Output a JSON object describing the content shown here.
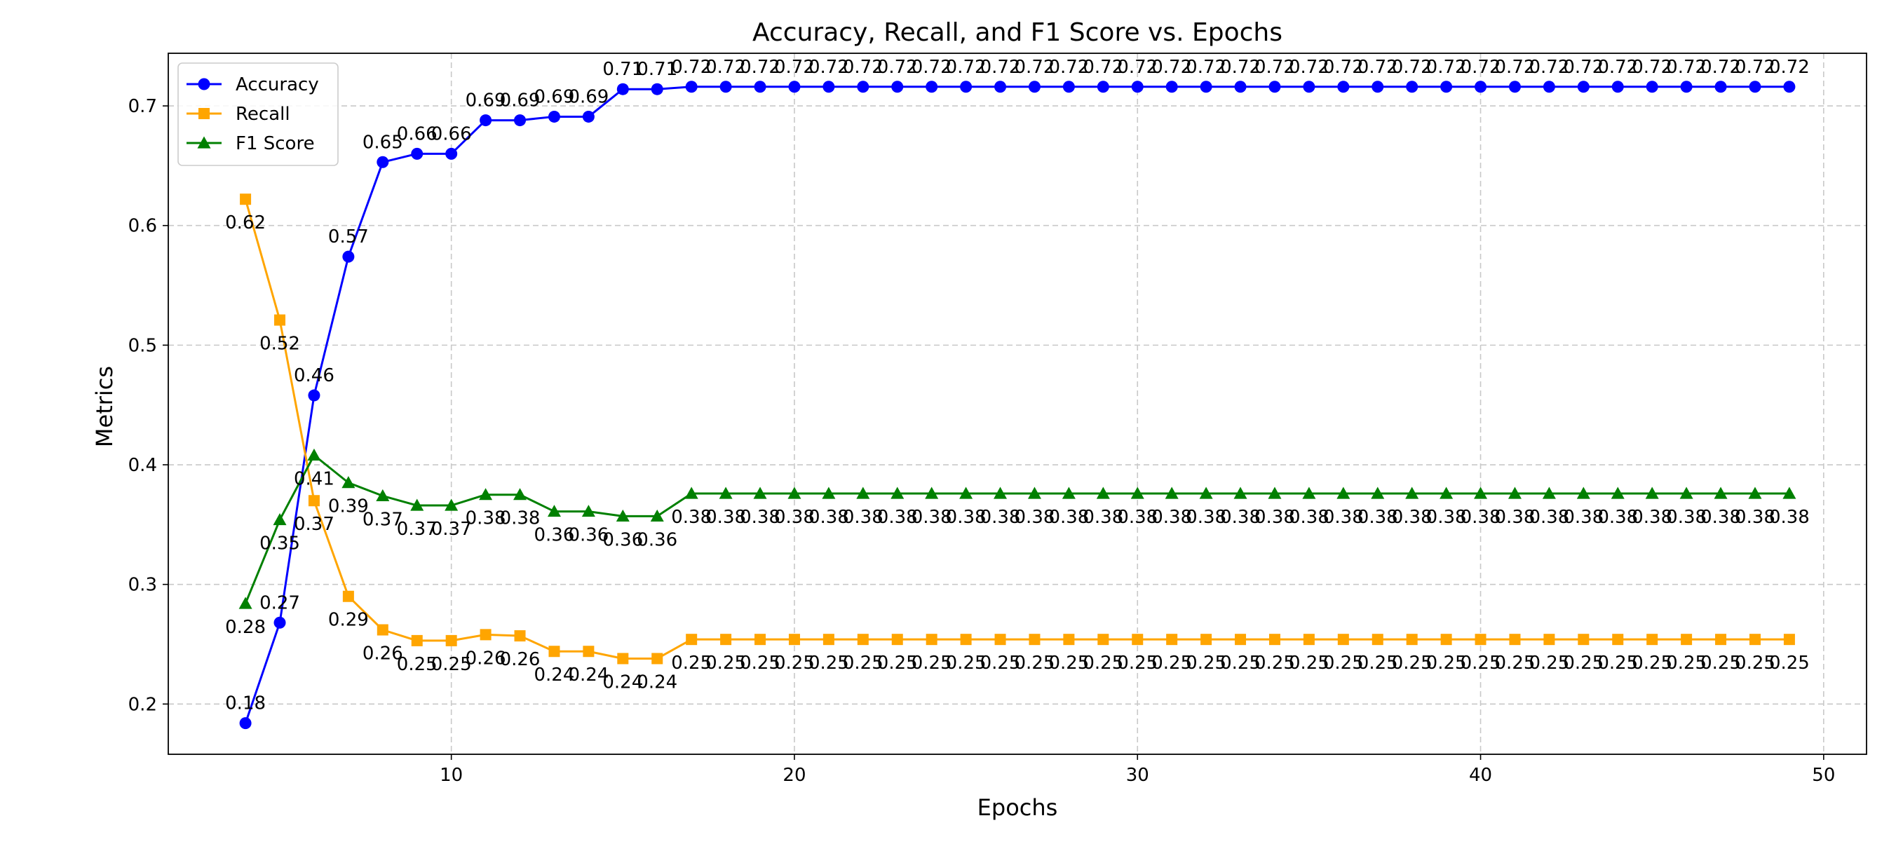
{
  "chart_data": {
    "type": "line",
    "title": "Accuracy, Recall, and F1 Score vs. Epochs",
    "xlabel": "Epochs",
    "ylabel": "Metrics",
    "xlim": [
      1.75,
      51.25
    ],
    "ylim": [
      0.158,
      0.744
    ],
    "xticks": [
      10,
      20,
      30,
      40,
      50
    ],
    "yticks": [
      0.2,
      0.3,
      0.4,
      0.5,
      0.6,
      0.7
    ],
    "grid": true,
    "legend_position": "top-left",
    "x": [
      4,
      5,
      6,
      7,
      8,
      9,
      10,
      11,
      12,
      13,
      14,
      15,
      16,
      17,
      18,
      19,
      20,
      21,
      22,
      23,
      24,
      25,
      26,
      27,
      28,
      29,
      30,
      31,
      32,
      33,
      34,
      35,
      36,
      37,
      38,
      39,
      40,
      41,
      42,
      43,
      44,
      45,
      46,
      47,
      48,
      49
    ],
    "series": [
      {
        "name": "Accuracy",
        "color": "#0000ff",
        "marker": "circle",
        "label_position": "above",
        "values": [
          0.184,
          0.268,
          0.458,
          0.574,
          0.653,
          0.66,
          0.66,
          0.688,
          0.688,
          0.691,
          0.691,
          0.714,
          0.714,
          0.716,
          0.716,
          0.716,
          0.716,
          0.716,
          0.716,
          0.716,
          0.716,
          0.716,
          0.716,
          0.716,
          0.716,
          0.716,
          0.716,
          0.716,
          0.716,
          0.716,
          0.716,
          0.716,
          0.716,
          0.716,
          0.716,
          0.716,
          0.716,
          0.716,
          0.716,
          0.716,
          0.716,
          0.716,
          0.716,
          0.716,
          0.716,
          0.716
        ],
        "labels": [
          "0.18",
          "0.27",
          "0.46",
          "0.57",
          "0.65",
          "0.66",
          "0.66",
          "0.69",
          "0.69",
          "0.69",
          "0.69",
          "0.71",
          "0.71",
          "0.72",
          "0.72",
          "0.72",
          "0.72",
          "0.72",
          "0.72",
          "0.72",
          "0.72",
          "0.72",
          "0.72",
          "0.72",
          "0.72",
          "0.72",
          "0.72",
          "0.72",
          "0.72",
          "0.72",
          "0.72",
          "0.72",
          "0.72",
          "0.72",
          "0.72",
          "0.72",
          "0.72",
          "0.72",
          "0.72",
          "0.72",
          "0.72",
          "0.72",
          "0.72",
          "0.72",
          "0.72",
          "0.72"
        ]
      },
      {
        "name": "Recall",
        "color": "#ffa500",
        "marker": "square",
        "label_position": "below",
        "values": [
          0.622,
          0.521,
          0.37,
          0.29,
          0.262,
          0.253,
          0.253,
          0.258,
          0.257,
          0.244,
          0.244,
          0.238,
          0.238,
          0.254,
          0.254,
          0.254,
          0.254,
          0.254,
          0.254,
          0.254,
          0.254,
          0.254,
          0.254,
          0.254,
          0.254,
          0.254,
          0.254,
          0.254,
          0.254,
          0.254,
          0.254,
          0.254,
          0.254,
          0.254,
          0.254,
          0.254,
          0.254,
          0.254,
          0.254,
          0.254,
          0.254,
          0.254,
          0.254,
          0.254,
          0.254,
          0.254
        ],
        "labels": [
          "0.62",
          "0.52",
          "0.37",
          "0.29",
          "0.26",
          "0.25",
          "0.25",
          "0.26",
          "0.26",
          "0.24",
          "0.24",
          "0.24",
          "0.24",
          "0.25",
          "0.25",
          "0.25",
          "0.25",
          "0.25",
          "0.25",
          "0.25",
          "0.25",
          "0.25",
          "0.25",
          "0.25",
          "0.25",
          "0.25",
          "0.25",
          "0.25",
          "0.25",
          "0.25",
          "0.25",
          "0.25",
          "0.25",
          "0.25",
          "0.25",
          "0.25",
          "0.25",
          "0.25",
          "0.25",
          "0.25",
          "0.25",
          "0.25",
          "0.25",
          "0.25",
          "0.25",
          "0.25"
        ]
      },
      {
        "name": "F1 Score",
        "color": "#008000",
        "marker": "triangle",
        "label_position": "below",
        "values": [
          0.284,
          0.354,
          0.408,
          0.385,
          0.374,
          0.366,
          0.366,
          0.375,
          0.375,
          0.361,
          0.361,
          0.357,
          0.357,
          0.376,
          0.376,
          0.376,
          0.376,
          0.376,
          0.376,
          0.376,
          0.376,
          0.376,
          0.376,
          0.376,
          0.376,
          0.376,
          0.376,
          0.376,
          0.376,
          0.376,
          0.376,
          0.376,
          0.376,
          0.376,
          0.376,
          0.376,
          0.376,
          0.376,
          0.376,
          0.376,
          0.376,
          0.376,
          0.376,
          0.376,
          0.376,
          0.376
        ],
        "labels": [
          "0.28",
          "0.35",
          "0.41",
          "0.39",
          "0.37",
          "0.37",
          "0.37",
          "0.38",
          "0.38",
          "0.36",
          "0.36",
          "0.36",
          "0.36",
          "0.38",
          "0.38",
          "0.38",
          "0.38",
          "0.38",
          "0.38",
          "0.38",
          "0.38",
          "0.38",
          "0.38",
          "0.38",
          "0.38",
          "0.38",
          "0.38",
          "0.38",
          "0.38",
          "0.38",
          "0.38",
          "0.38",
          "0.38",
          "0.38",
          "0.38",
          "0.38",
          "0.38",
          "0.38",
          "0.38",
          "0.38",
          "0.38",
          "0.38",
          "0.38",
          "0.38",
          "0.38",
          "0.38"
        ]
      }
    ]
  }
}
